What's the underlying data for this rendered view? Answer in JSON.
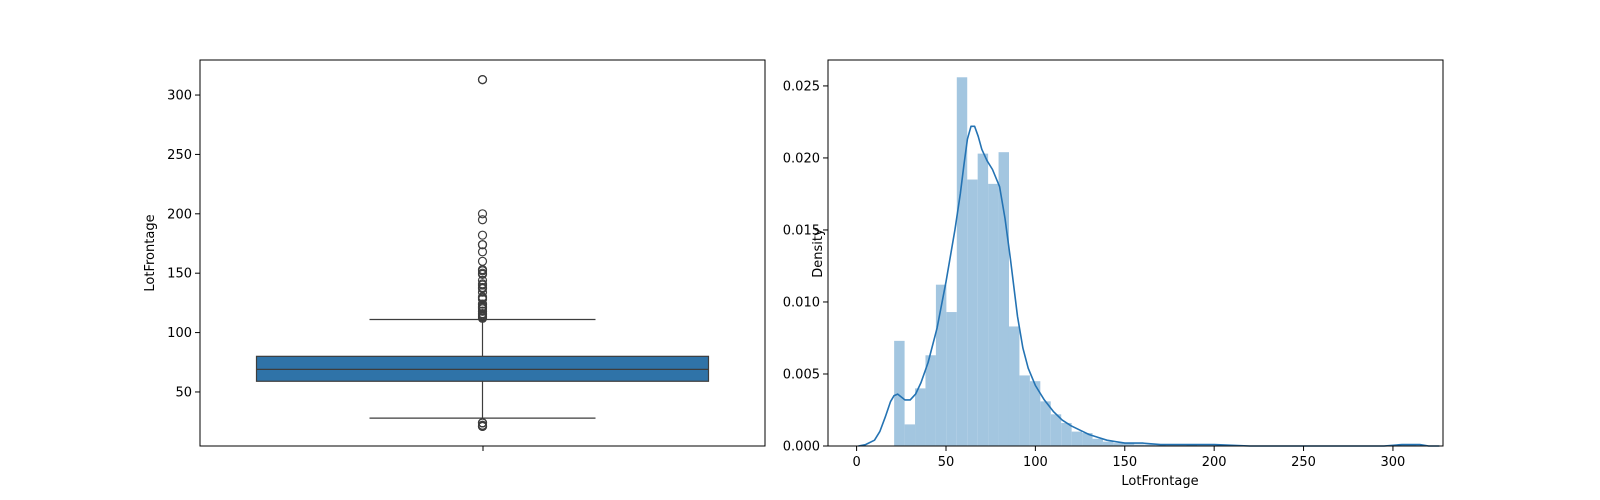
{
  "chart_data": [
    {
      "type": "boxplot",
      "ylabel": "LotFrontage",
      "xlabel": "",
      "ylim": [
        4.5,
        329.5
      ],
      "yticks": [
        50,
        100,
        150,
        200,
        250,
        300
      ],
      "box": {
        "q1": 59,
        "median": 69,
        "q3": 80,
        "whisker_low": 28,
        "whisker_high": 111
      },
      "outliers": [
        21,
        21,
        21,
        22,
        24,
        24,
        24,
        24,
        112,
        113,
        114,
        115,
        116,
        118,
        118,
        120,
        121,
        122,
        124,
        124,
        128,
        129,
        130,
        130,
        134,
        137,
        138,
        140,
        141,
        144,
        149,
        150,
        152,
        153,
        160,
        168,
        174,
        174,
        182,
        195,
        200,
        313,
        313
      ],
      "colors": {
        "box": "#2f73a8",
        "edge": "#3d3d3d"
      }
    },
    {
      "type": "histogram+kde",
      "xlabel": "LotFrontage",
      "ylabel": "Density",
      "xlim": [
        -16,
        328
      ],
      "ylim": [
        0,
        0.0268
      ],
      "xticks": [
        0,
        50,
        100,
        150,
        200,
        250,
        300
      ],
      "yticks": [
        0.0,
        0.005,
        0.01,
        0.015,
        0.02,
        0.025
      ],
      "ytick_labels": [
        "0.000",
        "0.005",
        "0.010",
        "0.015",
        "0.020",
        "0.025"
      ],
      "bin_start": 21,
      "bin_width": 5.84,
      "hist_values": [
        0.0073,
        0.0015,
        0.004,
        0.0063,
        0.0112,
        0.0093,
        0.0256,
        0.0185,
        0.0203,
        0.0182,
        0.0204,
        0.0083,
        0.0049,
        0.0045,
        0.0031,
        0.0022,
        0.0016,
        0.001,
        0.0009,
        0.0005,
        0.0003,
        0.0002,
        0.0002,
        0.0001,
        0.0001,
        0.0001,
        0.0,
        0.0,
        0.0001,
        0.0,
        0.0,
        0.0,
        0.0,
        0.0,
        0.0,
        0.0,
        0.0,
        0.0,
        0.0,
        0.0,
        0.0,
        0.0,
        0.0,
        0.0,
        0.0,
        0.0,
        0.0,
        0.0,
        0.0001,
        0.0001
      ],
      "kde_x": [
        1,
        5,
        10,
        13,
        16,
        19,
        21,
        23,
        25,
        27,
        30,
        33,
        36,
        40,
        45,
        50,
        55,
        58,
        60,
        62,
        64,
        66,
        68,
        70,
        73,
        76,
        80,
        83,
        86,
        90,
        93,
        96,
        100,
        105,
        110,
        115,
        120,
        125,
        130,
        135,
        140,
        145,
        150,
        160,
        170,
        180,
        190,
        200,
        220,
        240,
        260,
        280,
        295,
        305,
        310,
        315,
        320,
        326
      ],
      "kde_y": [
        0.0,
        0.0001,
        0.0004,
        0.001,
        0.002,
        0.0031,
        0.0035,
        0.0036,
        0.0034,
        0.0032,
        0.0032,
        0.0036,
        0.0044,
        0.0058,
        0.0082,
        0.0114,
        0.015,
        0.0175,
        0.0195,
        0.0213,
        0.0222,
        0.0222,
        0.0215,
        0.0206,
        0.0198,
        0.0192,
        0.018,
        0.0158,
        0.013,
        0.009,
        0.0068,
        0.0054,
        0.0042,
        0.0032,
        0.0024,
        0.0018,
        0.0014,
        0.0011,
        0.0008,
        0.0006,
        0.0004,
        0.0003,
        0.0002,
        0.0002,
        0.0001,
        0.0001,
        0.0001,
        0.0001,
        0.0,
        0.0,
        0.0,
        0.0,
        0.0,
        0.0001,
        0.0001,
        0.0001,
        0.0,
        0.0
      ],
      "colors": {
        "bars": "#a3c6e0",
        "line": "#2473b3"
      }
    }
  ]
}
